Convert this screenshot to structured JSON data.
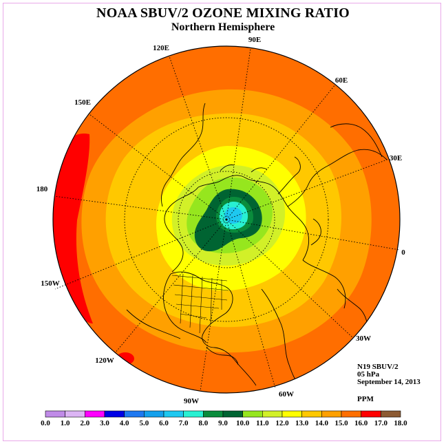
{
  "title": "NOAA SBUV/2 OZONE MIXING RATIO",
  "subtitle": "Northern Hemisphere",
  "longitude_labels": {
    "e90": "90E",
    "e120": "120E",
    "e60": "60E",
    "e150": "150E",
    "e30": "30E",
    "d180": "180",
    "d0": "0",
    "w150": "150W",
    "w30": "30W",
    "w120": "120W",
    "w60": "60W",
    "w90": "90W"
  },
  "info": {
    "instrument": "N19 SBUV/2",
    "level": "05 hPa",
    "date": "September 14, 2013",
    "units": "PPM"
  },
  "colorbar": {
    "tick_labels": [
      "0.0",
      "1.0",
      "2.0",
      "3.0",
      "4.0",
      "5.0",
      "6.0",
      "7.0",
      "8.0",
      "9.0",
      "10.0",
      "11.0",
      "12.0",
      "13.0",
      "14.0",
      "15.0",
      "16.0",
      "17.0",
      "18.0"
    ],
    "colors": [
      "#c08be8",
      "#dcb4f4",
      "#ff00ff",
      "#0000e6",
      "#1e78f0",
      "#14a0ec",
      "#1ec8f0",
      "#28f0d2",
      "#0a8c3c",
      "#006432",
      "#96e61e",
      "#d2f028",
      "#ffff00",
      "#ffc800",
      "#ffa000",
      "#ff6e00",
      "#ff0000",
      "#8c5a32"
    ]
  },
  "colors": {
    "ring_outer": "#ff6e00",
    "ring_15": "#ffa000",
    "ring_14": "#ffc800",
    "ring_13": "#ffff00",
    "ring_12": "#d2f028",
    "ring_11": "#96e61e",
    "core_10": "#006432",
    "core_8": "#28f0d2",
    "peak_17": "#ff0000",
    "frame": "#e9a8e9"
  }
}
